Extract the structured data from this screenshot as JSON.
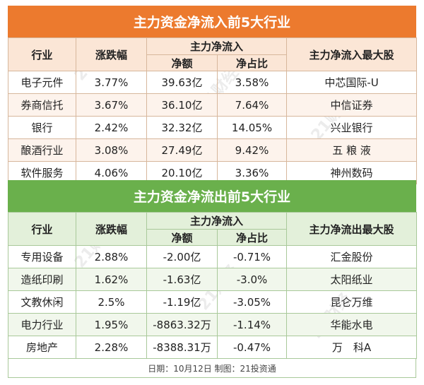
{
  "inflow": {
    "title": "主力资金净流入前5大行业",
    "headers": {
      "industry": "行业",
      "change": "涨跌幅",
      "netflow": "主力净流入",
      "amount": "净额",
      "ratio": "净占比",
      "top_stock": "主力净流入最大股"
    },
    "rows": [
      {
        "industry": "电子元件",
        "change": "3.77%",
        "amount": "39.63亿",
        "ratio": "3.58%",
        "stock": "中芯国际-U"
      },
      {
        "industry": "券商信托",
        "change": "3.67%",
        "amount": "36.10亿",
        "ratio": "7.64%",
        "stock": "中信证券"
      },
      {
        "industry": "银行",
        "change": "2.42%",
        "amount": "32.32亿",
        "ratio": "14.05%",
        "stock": "兴业银行"
      },
      {
        "industry": "酿酒行业",
        "change": "3.08%",
        "amount": "27.49亿",
        "ratio": "9.42%",
        "stock": "五 粮 液"
      },
      {
        "industry": "软件服务",
        "change": "4.06%",
        "amount": "20.10亿",
        "ratio": "3.36%",
        "stock": "神州数码"
      }
    ]
  },
  "outflow": {
    "title": "主力资金净流出前5大行业",
    "headers": {
      "industry": "行业",
      "change": "涨跌幅",
      "netflow": "主力净流入",
      "amount": "净额",
      "ratio": "净占比",
      "top_stock": "主力净流出最大股"
    },
    "rows": [
      {
        "industry": "专用设备",
        "change": "2.88%",
        "amount": "-2.00亿",
        "ratio": "-0.71%",
        "stock": "汇金股份"
      },
      {
        "industry": "造纸印刷",
        "change": "1.62%",
        "amount": "-1.63亿",
        "ratio": "-3.0%",
        "stock": "太阳纸业"
      },
      {
        "industry": "文教休闲",
        "change": "2.5%",
        "amount": "-1.19亿",
        "ratio": "-3.05%",
        "stock": "昆仑万维"
      },
      {
        "industry": "电力行业",
        "change": "1.95%",
        "amount": "-8863.32万",
        "ratio": "-1.14%",
        "stock": "华能水电"
      },
      {
        "industry": "房地产",
        "change": "2.28%",
        "amount": "-8388.31万",
        "ratio": "-0.47%",
        "stock": "万　科A"
      }
    ]
  },
  "footer": "日期：10月12日 制图：21投资通",
  "watermark": "21财经",
  "colors": {
    "inflow_banner": "#ec7a2e",
    "outflow_banner": "#6ab04c"
  }
}
